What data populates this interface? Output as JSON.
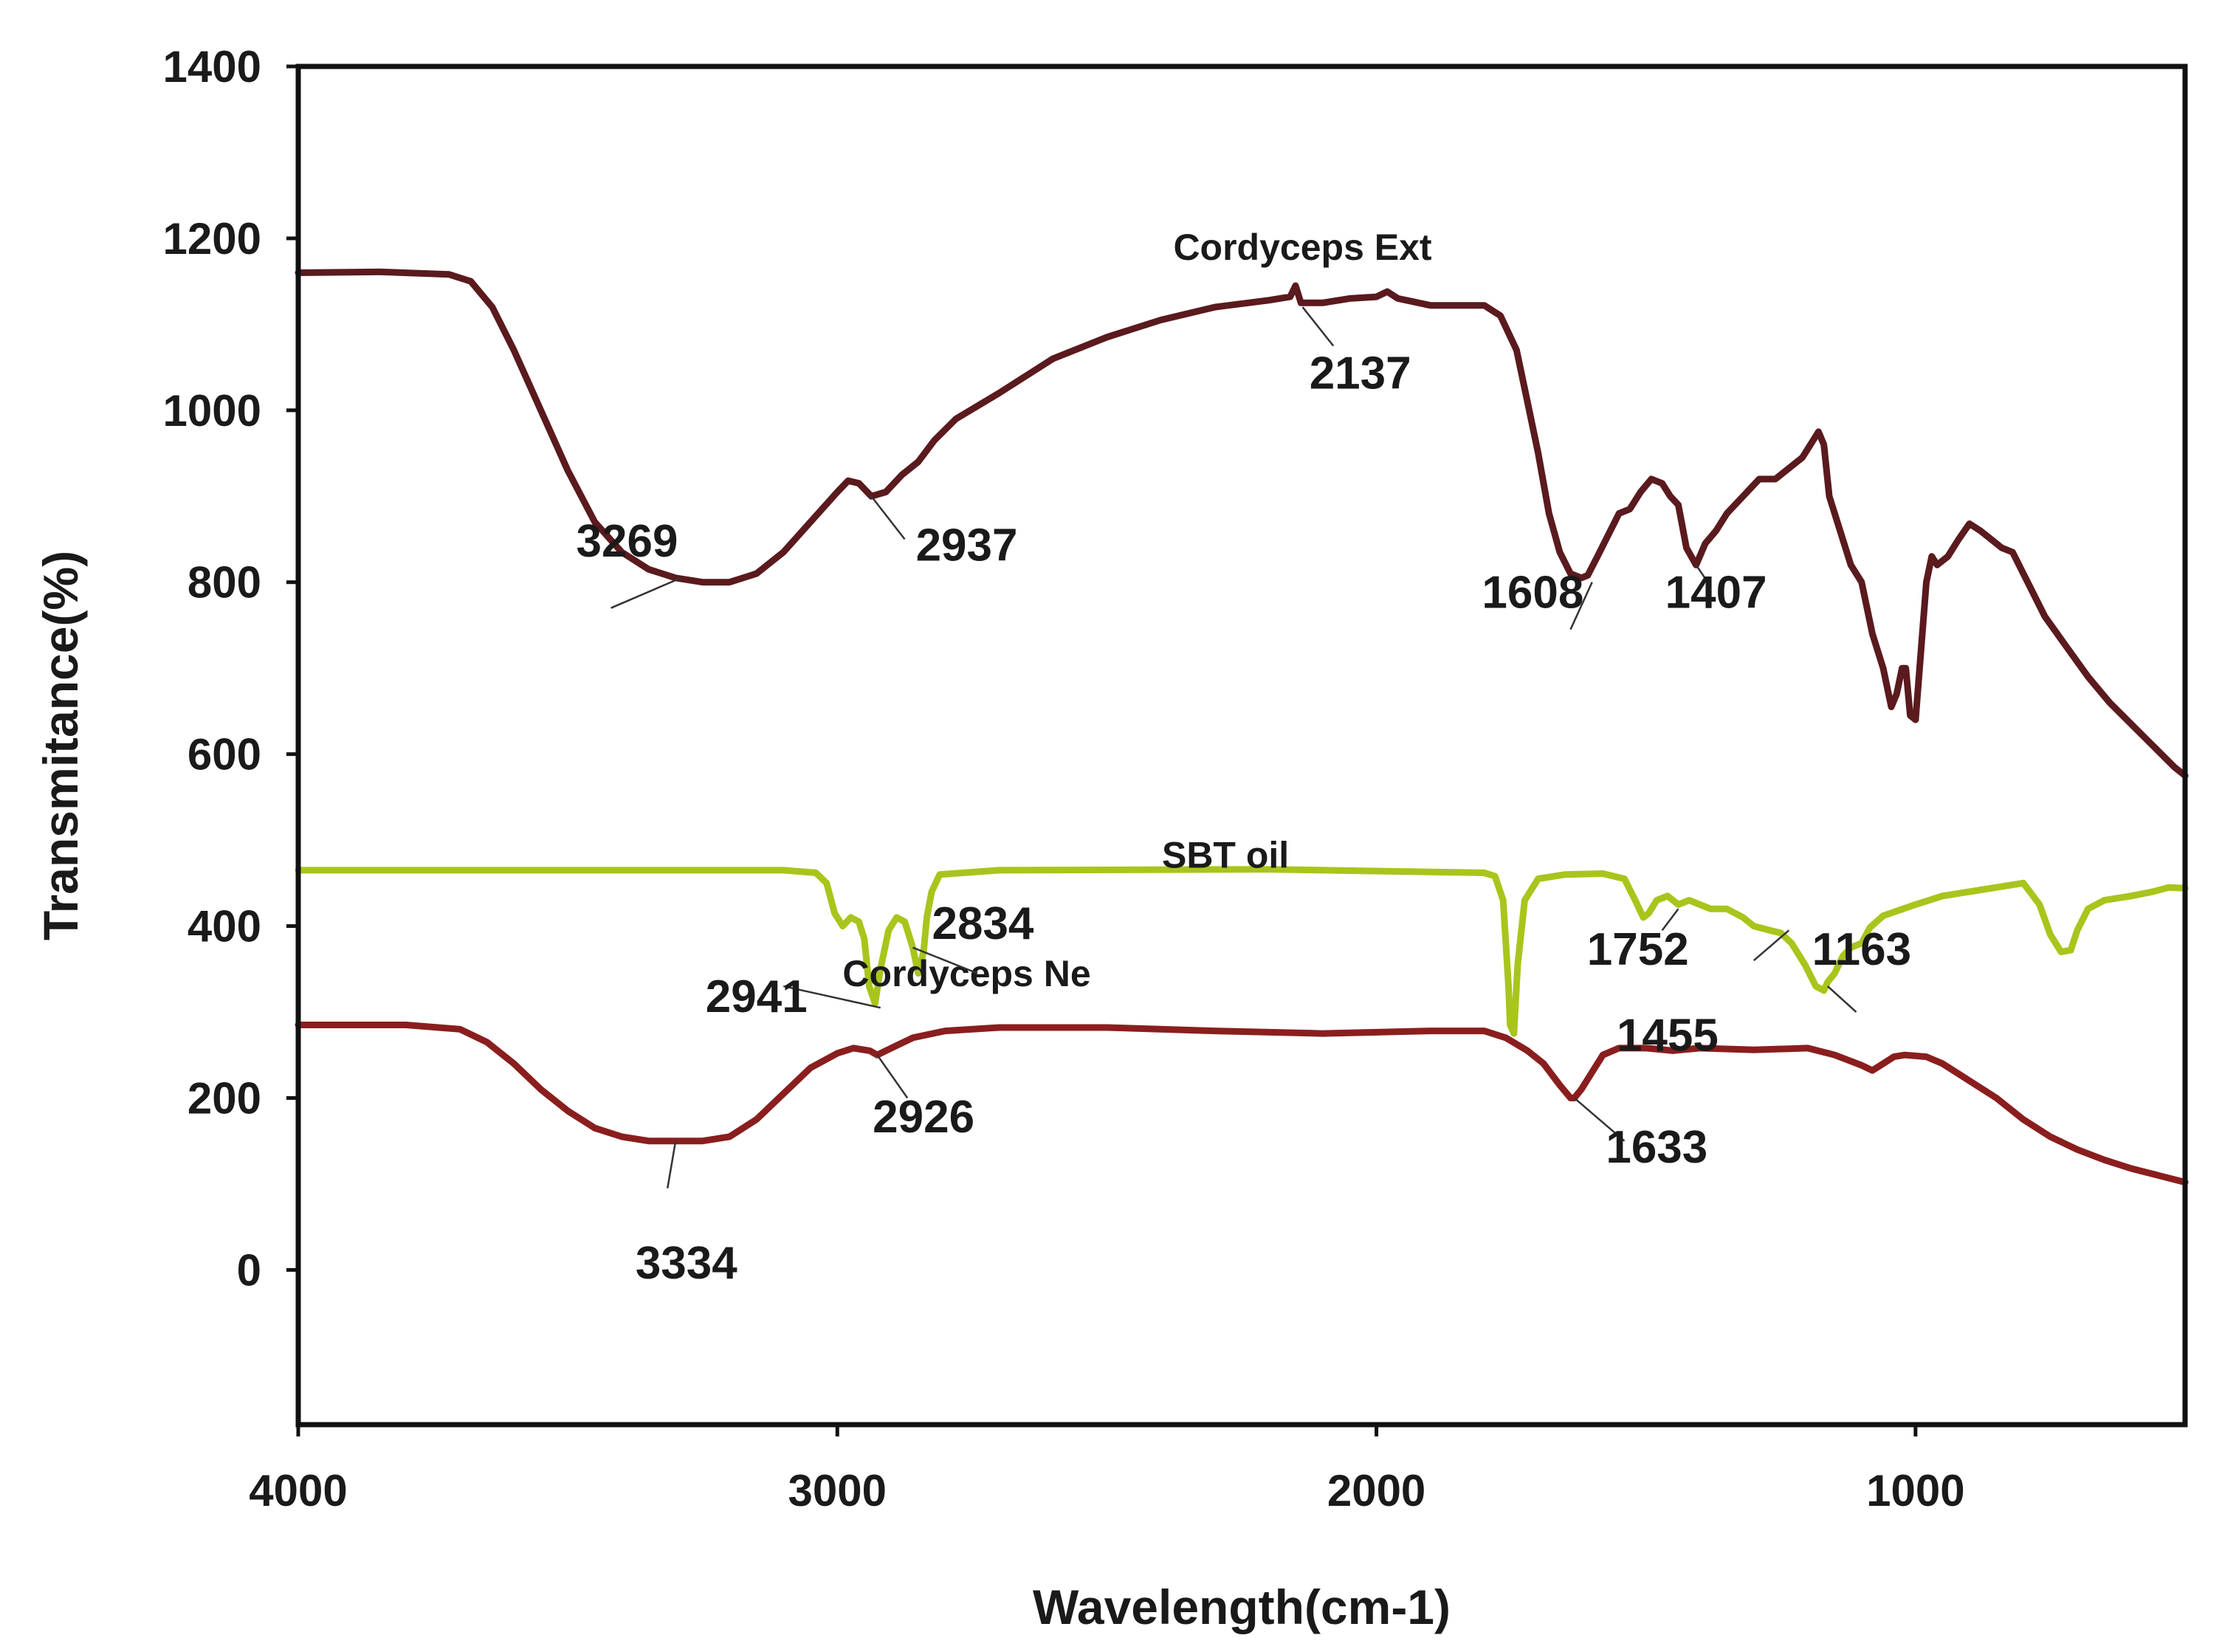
{
  "chart_data": {
    "type": "line",
    "title": "",
    "xlabel": "Wavelength(cm-1)",
    "ylabel": "Transmitance(%)",
    "xlim": [
      4000,
      500
    ],
    "ylim": [
      -180,
      1400
    ],
    "x_ticks": [
      {
        "value": 4000,
        "label": "4000"
      },
      {
        "value": 3000,
        "label": "3000"
      },
      {
        "value": 2000,
        "label": "2000"
      },
      {
        "value": 1000,
        "label": "1000"
      }
    ],
    "y_ticks": [
      {
        "value": 1400,
        "label": "1400"
      },
      {
        "value": 1200,
        "label": "1200"
      },
      {
        "value": 1000,
        "label": "1000"
      },
      {
        "value": 800,
        "label": "800"
      },
      {
        "value": 600,
        "label": "600"
      },
      {
        "value": 400,
        "label": "400"
      },
      {
        "value": 200,
        "label": "200"
      },
      {
        "value": 0,
        "label": "0"
      }
    ],
    "series": [
      {
        "name": "Cordyceps Ext",
        "color": "#5a1a1e",
        "label_at": [
          2137,
          1175
        ],
        "points": [
          [
            4000,
            1160
          ],
          [
            3850,
            1161
          ],
          [
            3720,
            1158
          ],
          [
            3680,
            1150
          ],
          [
            3640,
            1120
          ],
          [
            3600,
            1070
          ],
          [
            3550,
            1000
          ],
          [
            3500,
            930
          ],
          [
            3450,
            870
          ],
          [
            3400,
            835
          ],
          [
            3350,
            815
          ],
          [
            3300,
            805
          ],
          [
            3250,
            800
          ],
          [
            3200,
            800
          ],
          [
            3150,
            810
          ],
          [
            3100,
            835
          ],
          [
            3050,
            870
          ],
          [
            3000,
            905
          ],
          [
            2980,
            918
          ],
          [
            2960,
            915
          ],
          [
            2937,
            900
          ],
          [
            2910,
            905
          ],
          [
            2880,
            925
          ],
          [
            2850,
            940
          ],
          [
            2820,
            965
          ],
          [
            2780,
            990
          ],
          [
            2700,
            1020
          ],
          [
            2600,
            1060
          ],
          [
            2500,
            1085
          ],
          [
            2400,
            1105
          ],
          [
            2300,
            1120
          ],
          [
            2200,
            1128
          ],
          [
            2160,
            1132
          ],
          [
            2150,
            1145
          ],
          [
            2140,
            1125
          ],
          [
            2100,
            1125
          ],
          [
            2050,
            1130
          ],
          [
            2000,
            1132
          ],
          [
            1980,
            1138
          ],
          [
            1960,
            1130
          ],
          [
            1900,
            1122
          ],
          [
            1850,
            1122
          ],
          [
            1800,
            1122
          ],
          [
            1770,
            1110
          ],
          [
            1740,
            1070
          ],
          [
            1720,
            1010
          ],
          [
            1700,
            950
          ],
          [
            1680,
            880
          ],
          [
            1660,
            835
          ],
          [
            1640,
            810
          ],
          [
            1620,
            805
          ],
          [
            1608,
            808
          ],
          [
            1590,
            830
          ],
          [
            1570,
            855
          ],
          [
            1550,
            880
          ],
          [
            1530,
            885
          ],
          [
            1510,
            905
          ],
          [
            1490,
            920
          ],
          [
            1470,
            915
          ],
          [
            1455,
            900
          ],
          [
            1440,
            890
          ],
          [
            1425,
            840
          ],
          [
            1407,
            820
          ],
          [
            1390,
            845
          ],
          [
            1370,
            860
          ],
          [
            1350,
            880
          ],
          [
            1320,
            900
          ],
          [
            1290,
            920
          ],
          [
            1260,
            920
          ],
          [
            1230,
            935
          ],
          [
            1210,
            945
          ],
          [
            1190,
            965
          ],
          [
            1180,
            975
          ],
          [
            1170,
            960
          ],
          [
            1160,
            900
          ],
          [
            1140,
            860
          ],
          [
            1120,
            820
          ],
          [
            1100,
            800
          ],
          [
            1080,
            740
          ],
          [
            1060,
            700
          ],
          [
            1045,
            655
          ],
          [
            1035,
            670
          ],
          [
            1025,
            700
          ],
          [
            1018,
            700
          ],
          [
            1010,
            645
          ],
          [
            1000,
            640
          ],
          [
            990,
            720
          ],
          [
            980,
            800
          ],
          [
            970,
            830
          ],
          [
            960,
            820
          ],
          [
            940,
            830
          ],
          [
            920,
            850
          ],
          [
            900,
            868
          ],
          [
            880,
            860
          ],
          [
            860,
            850
          ],
          [
            840,
            840
          ],
          [
            820,
            835
          ],
          [
            800,
            810
          ],
          [
            780,
            785
          ],
          [
            760,
            760
          ],
          [
            720,
            725
          ],
          [
            680,
            690
          ],
          [
            640,
            660
          ],
          [
            600,
            635
          ],
          [
            560,
            610
          ],
          [
            520,
            585
          ],
          [
            500,
            575
          ]
        ]
      },
      {
        "name": "SBT oil",
        "color": "#a8c51c",
        "label_at": [
          2280,
          468
        ],
        "points": [
          [
            4000,
            465
          ],
          [
            3500,
            465
          ],
          [
            3100,
            465
          ],
          [
            3040,
            462
          ],
          [
            3020,
            450
          ],
          [
            3005,
            415
          ],
          [
            2990,
            400
          ],
          [
            2975,
            410
          ],
          [
            2960,
            405
          ],
          [
            2950,
            385
          ],
          [
            2941,
            330
          ],
          [
            2930,
            310
          ],
          [
            2920,
            350
          ],
          [
            2905,
            395
          ],
          [
            2890,
            410
          ],
          [
            2875,
            405
          ],
          [
            2860,
            375
          ],
          [
            2850,
            345
          ],
          [
            2840,
            370
          ],
          [
            2834,
            410
          ],
          [
            2825,
            440
          ],
          [
            2810,
            460
          ],
          [
            2700,
            465
          ],
          [
            2200,
            466
          ],
          [
            1900,
            463
          ],
          [
            1800,
            462
          ],
          [
            1780,
            458
          ],
          [
            1765,
            430
          ],
          [
            1755,
            330
          ],
          [
            1752,
            285
          ],
          [
            1745,
            275
          ],
          [
            1738,
            355
          ],
          [
            1725,
            430
          ],
          [
            1700,
            455
          ],
          [
            1650,
            460
          ],
          [
            1580,
            461
          ],
          [
            1540,
            455
          ],
          [
            1520,
            430
          ],
          [
            1505,
            410
          ],
          [
            1495,
            415
          ],
          [
            1480,
            430
          ],
          [
            1460,
            435
          ],
          [
            1440,
            425
          ],
          [
            1420,
            430
          ],
          [
            1380,
            420
          ],
          [
            1350,
            420
          ],
          [
            1320,
            410
          ],
          [
            1300,
            400
          ],
          [
            1270,
            395
          ],
          [
            1250,
            392
          ],
          [
            1230,
            380
          ],
          [
            1205,
            355
          ],
          [
            1185,
            330
          ],
          [
            1170,
            325
          ],
          [
            1163,
            335
          ],
          [
            1150,
            345
          ],
          [
            1135,
            365
          ],
          [
            1120,
            375
          ],
          [
            1100,
            380
          ],
          [
            1085,
            398
          ],
          [
            1060,
            412
          ],
          [
            1000,
            425
          ],
          [
            950,
            435
          ],
          [
            900,
            440
          ],
          [
            850,
            445
          ],
          [
            800,
            450
          ],
          [
            770,
            425
          ],
          [
            750,
            390
          ],
          [
            730,
            370
          ],
          [
            712,
            372
          ],
          [
            700,
            395
          ],
          [
            680,
            420
          ],
          [
            650,
            430
          ],
          [
            600,
            435
          ],
          [
            560,
            440
          ],
          [
            530,
            445
          ],
          [
            500,
            444
          ]
        ]
      },
      {
        "name": "Cordyceps Ne",
        "color": "#8a1e1e",
        "label_at": [
          2760,
          330
        ],
        "points": [
          [
            4000,
            285
          ],
          [
            3800,
            285
          ],
          [
            3700,
            280
          ],
          [
            3650,
            265
          ],
          [
            3600,
            240
          ],
          [
            3550,
            210
          ],
          [
            3500,
            185
          ],
          [
            3450,
            165
          ],
          [
            3400,
            155
          ],
          [
            3350,
            150
          ],
          [
            3300,
            150
          ],
          [
            3250,
            150
          ],
          [
            3200,
            155
          ],
          [
            3150,
            175
          ],
          [
            3100,
            205
          ],
          [
            3050,
            235
          ],
          [
            3000,
            252
          ],
          [
            2970,
            258
          ],
          [
            2940,
            255
          ],
          [
            2926,
            250
          ],
          [
            2900,
            258
          ],
          [
            2860,
            270
          ],
          [
            2800,
            278
          ],
          [
            2700,
            282
          ],
          [
            2500,
            282
          ],
          [
            2300,
            278
          ],
          [
            2100,
            275
          ],
          [
            1900,
            278
          ],
          [
            1800,
            278
          ],
          [
            1760,
            270
          ],
          [
            1720,
            255
          ],
          [
            1690,
            240
          ],
          [
            1660,
            215
          ],
          [
            1640,
            200
          ],
          [
            1633,
            200
          ],
          [
            1620,
            210
          ],
          [
            1600,
            230
          ],
          [
            1580,
            250
          ],
          [
            1550,
            258
          ],
          [
            1500,
            258
          ],
          [
            1450,
            255
          ],
          [
            1400,
            258
          ],
          [
            1300,
            256
          ],
          [
            1200,
            258
          ],
          [
            1150,
            250
          ],
          [
            1100,
            238
          ],
          [
            1080,
            232
          ],
          [
            1060,
            240
          ],
          [
            1040,
            248
          ],
          [
            1020,
            250
          ],
          [
            980,
            248
          ],
          [
            950,
            240
          ],
          [
            900,
            220
          ],
          [
            850,
            200
          ],
          [
            800,
            175
          ],
          [
            750,
            155
          ],
          [
            700,
            140
          ],
          [
            650,
            128
          ],
          [
            600,
            118
          ],
          [
            550,
            110
          ],
          [
            500,
            102
          ]
        ]
      }
    ],
    "annotations": [
      {
        "label": "3269",
        "text_at": [
          3390,
          830
        ],
        "line_from": [
          3420,
          770
        ],
        "line_to": [
          3290,
          805
        ]
      },
      {
        "label": "2937",
        "text_at": [
          2760,
          825
        ],
        "line_from": [
          2937,
          900
        ],
        "line_to": [
          2875,
          850
        ]
      },
      {
        "label": "2137",
        "text_at": [
          2030,
          1025
        ],
        "line_from": [
          2137,
          1120
        ],
        "line_to": [
          2080,
          1075
        ]
      },
      {
        "label": "1608",
        "text_at": [
          1710,
          770
        ],
        "line_from": [
          1640,
          745
        ],
        "line_to": [
          1600,
          800
        ]
      },
      {
        "label": "1407",
        "text_at": [
          1370,
          770
        ],
        "line_from": [
          1407,
          820
        ],
        "line_to": [
          1380,
          795
        ]
      },
      {
        "label": "2941",
        "text_at": [
          3150,
          300
        ],
        "line_from": [
          3100,
          330
        ],
        "line_to": [
          2920,
          305
        ]
      },
      {
        "label": "2834",
        "text_at": [
          2730,
          385
        ],
        "line_from": [
          2860,
          375
        ],
        "line_to": [
          2740,
          345
        ]
      },
      {
        "label": "1752",
        "text_at": [
          1515,
          355
        ],
        "line_from": [
          1470,
          395
        ],
        "line_to": [
          1440,
          420
        ]
      },
      {
        "label": "1455",
        "text_at": [
          1460,
          255
        ],
        "line_from": [
          1300,
          360
        ],
        "line_to": [
          1235,
          395
        ]
      },
      {
        "label": "1163",
        "text_at": [
          1100,
          355
        ],
        "line_from": [
          1163,
          330
        ],
        "line_to": [
          1110,
          300
        ]
      },
      {
        "label": "2926",
        "text_at": [
          2840,
          160
        ],
        "line_from": [
          2926,
          250
        ],
        "line_to": [
          2870,
          200
        ]
      },
      {
        "label": "1633",
        "text_at": [
          1480,
          125
        ],
        "line_from": [
          1633,
          200
        ],
        "line_to": [
          1540,
          150
        ]
      },
      {
        "label": "3334",
        "text_at": [
          3280,
          -10
        ],
        "line_from": [
          3300,
          150
        ],
        "line_to": [
          3315,
          95
        ]
      }
    ]
  }
}
